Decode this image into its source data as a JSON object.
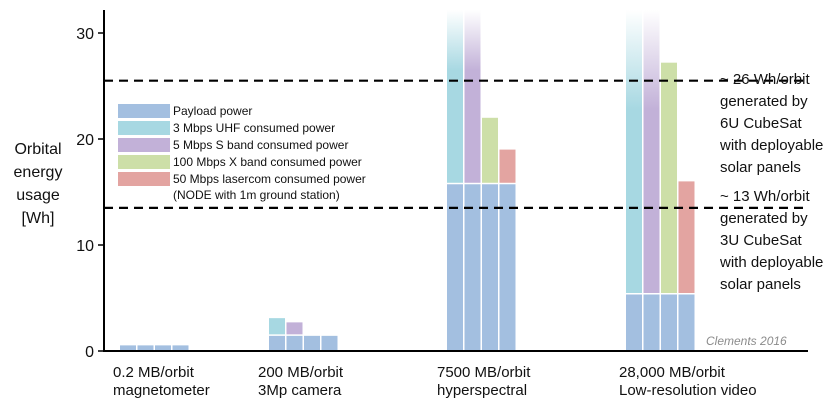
{
  "chart_data": {
    "type": "bar",
    "title": "",
    "ylabel": "Orbital\nenergy\nusage\n[Wh]",
    "xlabel": "",
    "ylim": [
      0,
      32
    ],
    "yticks": [
      0,
      10,
      20,
      30
    ],
    "grid": false,
    "legend_position": "left-middle",
    "categories": [
      "0.2 MB/orbit\nmagnetometer",
      "200 MB/orbit\n3Mp camera",
      "7500 MB/orbit\nhyperspectral",
      "28,000 MB/orbit\nLow-resolution video"
    ],
    "series": [
      {
        "name": "Payload power",
        "color": "#a3bfe0"
      },
      {
        "name": "3 Mbps UHF consumed power",
        "color": "#a7d8e2"
      },
      {
        "name": "5 Mbps S band consumed power",
        "color": "#c2b1d8"
      },
      {
        "name": "100 Mbps X band consumed power",
        "color": "#cddfa8"
      },
      {
        "name": "50 Mbps lasercom consumed power",
        "color": "#e3a4a1"
      }
    ],
    "legend_note": "(NODE with 1m ground station)",
    "stacks": [
      {
        "category": 0,
        "payload": 0.6,
        "comm": [
          0.6,
          0.6,
          0.6,
          0.6
        ],
        "fades": [
          false,
          false,
          false,
          false
        ]
      },
      {
        "category": 1,
        "payload": 1.5,
        "comm": [
          3.1,
          2.7,
          1.5,
          1.5
        ],
        "fades": [
          false,
          false,
          false,
          false
        ]
      },
      {
        "category": 2,
        "payload": 15.8,
        "comm": [
          32,
          32,
          22,
          19
        ],
        "fades": [
          true,
          true,
          false,
          false
        ]
      },
      {
        "category": 3,
        "payload": 5.4,
        "comm": [
          32,
          32,
          27.2,
          16
        ],
        "fades": [
          true,
          true,
          false,
          false
        ]
      }
    ],
    "reference_lines": [
      {
        "value": 25.5,
        "label": "~ 26 Wh/orbit\ngenerated by\n6U CubeSat\nwith deployable\nsolar panels"
      },
      {
        "value": 13.5,
        "label": "~ 13 Wh/orbit\ngenerated by\n3U CubeSat\nwith deployable\nsolar panels"
      }
    ],
    "credit": "Clements 2016"
  }
}
